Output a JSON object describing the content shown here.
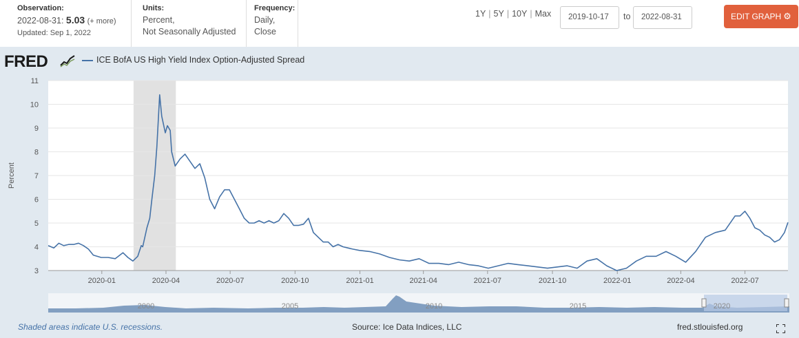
{
  "observation": {
    "label": "Observation:",
    "date": "2022-08-31:",
    "value": "5.03",
    "more": "(+ more)",
    "updated": "Updated: Sep 1, 2022"
  },
  "units": {
    "label": "Units:",
    "line1": "Percent,",
    "line2": "Not Seasonally Adjusted"
  },
  "frequency": {
    "label": "Frequency:",
    "line1": "Daily,",
    "line2": "Close"
  },
  "range_buttons": [
    "1Y",
    "5Y",
    "10Y",
    "Max"
  ],
  "date_range": {
    "start": "2019-10-17",
    "to_label": "to",
    "end": "2022-08-31"
  },
  "edit_button": "EDIT GRAPH",
  "logo_text": "FRED",
  "legend": {
    "series_name": "ICE BofA US High Yield Index Option-Adjusted Spread",
    "color": "#4572a7"
  },
  "footer": {
    "recession_note": "Shaded areas indicate U.S. recessions.",
    "source": "Source: Ice Data Indices, LLC",
    "site": "fred.stlouisfed.org"
  },
  "navigator_labels": [
    "2000",
    "2005",
    "2010",
    "2015",
    "2020"
  ],
  "chart_data": {
    "type": "line",
    "title": "ICE BofA US High Yield Index Option-Adjusted Spread",
    "xlabel": "",
    "ylabel": "Percent",
    "ylim": [
      3,
      11
    ],
    "yticks": [
      3,
      4,
      5,
      6,
      7,
      8,
      9,
      10,
      11
    ],
    "xlim": [
      "2019-10-17",
      "2022-08-31"
    ],
    "xticks": [
      "2020-01",
      "2020-04",
      "2020-07",
      "2020-10",
      "2021-01",
      "2021-04",
      "2021-07",
      "2021-10",
      "2022-01",
      "2022-04",
      "2022-07"
    ],
    "recession": {
      "start": "2020-02-15",
      "end": "2020-04-15"
    },
    "grid": true,
    "series": [
      {
        "name": "ICE BofA US High Yield Index Option-Adjusted Spread",
        "color": "#4572a7",
        "x": [
          "2019-10-17",
          "2019-10-25",
          "2019-11-01",
          "2019-11-08",
          "2019-11-15",
          "2019-11-22",
          "2019-11-29",
          "2019-12-06",
          "2019-12-13",
          "2019-12-20",
          "2019-12-31",
          "2020-01-10",
          "2020-01-20",
          "2020-01-31",
          "2020-02-07",
          "2020-02-14",
          "2020-02-21",
          "2020-02-26",
          "2020-02-28",
          "2020-03-05",
          "2020-03-09",
          "2020-03-12",
          "2020-03-16",
          "2020-03-19",
          "2020-03-23",
          "2020-03-26",
          "2020-03-31",
          "2020-04-03",
          "2020-04-07",
          "2020-04-09",
          "2020-04-14",
          "2020-04-21",
          "2020-04-28",
          "2020-05-05",
          "2020-05-12",
          "2020-05-19",
          "2020-05-26",
          "2020-06-02",
          "2020-06-09",
          "2020-06-16",
          "2020-06-23",
          "2020-06-30",
          "2020-07-07",
          "2020-07-14",
          "2020-07-21",
          "2020-07-28",
          "2020-08-04",
          "2020-08-11",
          "2020-08-18",
          "2020-08-25",
          "2020-09-01",
          "2020-09-08",
          "2020-09-15",
          "2020-09-22",
          "2020-09-29",
          "2020-10-06",
          "2020-10-13",
          "2020-10-20",
          "2020-10-27",
          "2020-11-03",
          "2020-11-10",
          "2020-11-17",
          "2020-11-24",
          "2020-12-01",
          "2020-12-08",
          "2020-12-15",
          "2020-12-22",
          "2020-12-31",
          "2021-01-15",
          "2021-01-29",
          "2021-02-12",
          "2021-02-26",
          "2021-03-12",
          "2021-03-26",
          "2021-04-09",
          "2021-04-23",
          "2021-05-07",
          "2021-05-21",
          "2021-06-04",
          "2021-06-18",
          "2021-07-02",
          "2021-07-16",
          "2021-07-30",
          "2021-08-13",
          "2021-08-27",
          "2021-09-10",
          "2021-09-24",
          "2021-10-08",
          "2021-10-22",
          "2021-11-05",
          "2021-11-19",
          "2021-12-03",
          "2021-12-17",
          "2021-12-31",
          "2022-01-14",
          "2022-01-28",
          "2022-02-11",
          "2022-02-25",
          "2022-03-11",
          "2022-03-25",
          "2022-04-08",
          "2022-04-22",
          "2022-05-06",
          "2022-05-20",
          "2022-06-03",
          "2022-06-17",
          "2022-06-24",
          "2022-07-01",
          "2022-07-08",
          "2022-07-15",
          "2022-07-22",
          "2022-07-29",
          "2022-08-05",
          "2022-08-12",
          "2022-08-19",
          "2022-08-26",
          "2022-08-31"
        ],
        "values": [
          4.05,
          3.95,
          4.15,
          4.05,
          4.1,
          4.1,
          4.15,
          4.05,
          3.9,
          3.65,
          3.55,
          3.55,
          3.5,
          3.75,
          3.55,
          3.4,
          3.6,
          4.05,
          4.0,
          4.8,
          5.2,
          6.0,
          7.0,
          8.2,
          10.4,
          9.5,
          8.8,
          9.1,
          8.9,
          8.0,
          7.4,
          7.7,
          7.9,
          7.6,
          7.3,
          7.5,
          6.9,
          6.0,
          5.6,
          6.1,
          6.4,
          6.4,
          6.0,
          5.6,
          5.2,
          5.0,
          5.0,
          5.1,
          5.0,
          5.1,
          5.0,
          5.1,
          5.4,
          5.2,
          4.9,
          4.9,
          4.95,
          5.2,
          4.6,
          4.4,
          4.2,
          4.2,
          4.0,
          4.1,
          4.0,
          3.95,
          3.9,
          3.85,
          3.8,
          3.7,
          3.55,
          3.45,
          3.4,
          3.5,
          3.3,
          3.3,
          3.25,
          3.35,
          3.25,
          3.2,
          3.1,
          3.2,
          3.3,
          3.25,
          3.2,
          3.15,
          3.1,
          3.15,
          3.2,
          3.1,
          3.4,
          3.5,
          3.2,
          3.0,
          3.1,
          3.4,
          3.6,
          3.6,
          3.8,
          3.6,
          3.35,
          3.8,
          4.4,
          4.6,
          4.7,
          5.3,
          5.3,
          5.5,
          5.2,
          4.8,
          4.7,
          4.5,
          4.4,
          4.2,
          4.3,
          4.6,
          5.03
        ]
      }
    ]
  }
}
